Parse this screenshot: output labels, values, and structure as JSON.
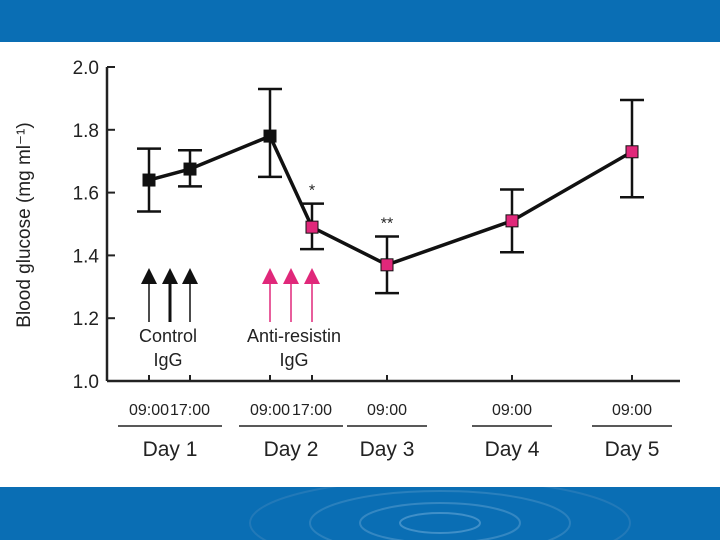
{
  "colors": {
    "band": "#0a6eb4",
    "control": "#111111",
    "treatment": "#e0287a",
    "line": "#111111"
  },
  "chart_data": {
    "type": "line",
    "title": "",
    "ylabel": "Blood glucose (mg ml⁻¹)",
    "ylim": [
      1.0,
      2.0
    ],
    "yticks": [
      "1.0",
      "1.2",
      "1.4",
      "1.6",
      "1.8",
      "2.0"
    ],
    "x_time_labels": [
      "09:00",
      "17:00",
      "09:00",
      "17:00",
      "09:00",
      "09:00",
      "09:00"
    ],
    "day_labels": [
      "Day 1",
      "Day 2",
      "Day 3",
      "Day 4",
      "Day 5"
    ],
    "series": [
      {
        "name": "Blood glucose",
        "points": [
          {
            "x": 0,
            "y": 1.64,
            "err_low": 1.54,
            "err_high": 1.74,
            "group": "control"
          },
          {
            "x": 1,
            "y": 1.675,
            "err_low": 1.62,
            "err_high": 1.735,
            "group": "control"
          },
          {
            "x": 2,
            "y": 1.78,
            "err_low": 1.65,
            "err_high": 1.93,
            "group": "control"
          },
          {
            "x": 3,
            "y": 1.49,
            "err_low": 1.42,
            "err_high": 1.565,
            "group": "treatment",
            "annotation": "*"
          },
          {
            "x": 4,
            "y": 1.37,
            "err_low": 1.28,
            "err_high": 1.46,
            "group": "treatment",
            "annotation": "**"
          },
          {
            "x": 5,
            "y": 1.51,
            "err_low": 1.41,
            "err_high": 1.61,
            "group": "treatment"
          },
          {
            "x": 6,
            "y": 1.73,
            "err_low": 1.585,
            "err_high": 1.895,
            "group": "treatment"
          }
        ]
      }
    ],
    "annotations": {
      "control_label_1": "Control",
      "control_label_2": "IgG",
      "treatment_label_1": "Anti-resistin",
      "treatment_label_2": "IgG"
    }
  }
}
